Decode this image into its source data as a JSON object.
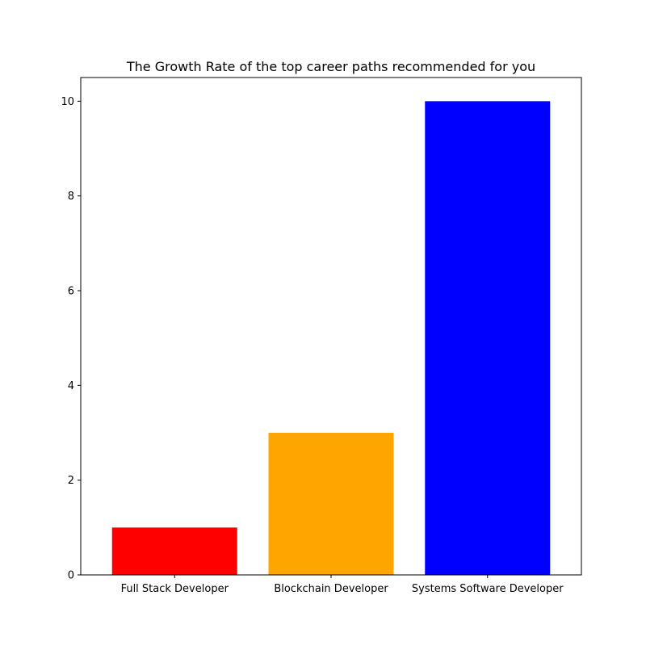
{
  "chart_data": {
    "type": "bar",
    "title": "The Growth Rate of the top career paths recommended for you",
    "xlabel": "",
    "ylabel": "",
    "categories": [
      "Full Stack Developer",
      "Blockchain Developer",
      "Systems Software Developer"
    ],
    "values": [
      1,
      3,
      10
    ],
    "colors": [
      "#ff0000",
      "#ffa500",
      "#0000ff"
    ],
    "ylim": [
      0,
      10.5
    ],
    "yticks": [
      0,
      2,
      4,
      6,
      8,
      10
    ],
    "grid": false,
    "legend": "none"
  }
}
